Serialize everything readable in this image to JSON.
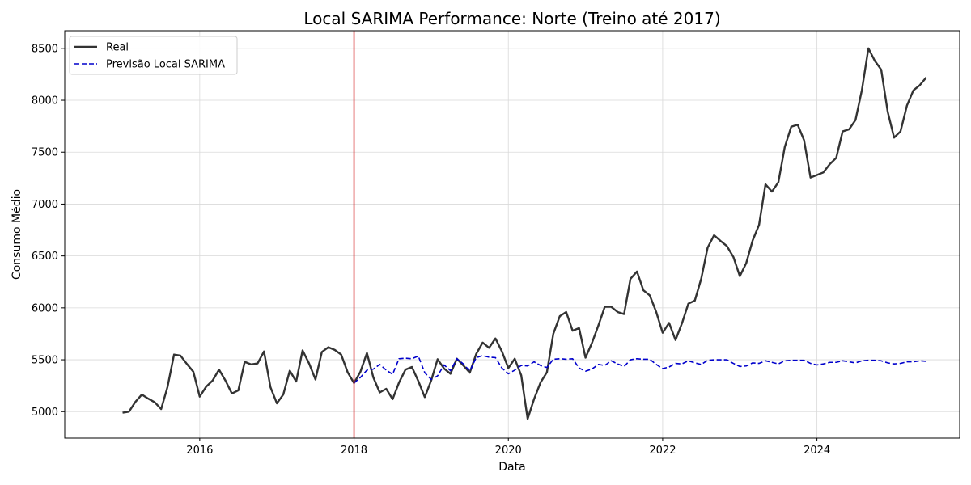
{
  "chart_data": {
    "type": "line",
    "title": "Local SARIMA Performance: Norte (Treino até 2017)",
    "xlabel": "Data",
    "ylabel": "Consumo Médio",
    "xlim": [
      2014.25,
      2025.85
    ],
    "ylim": [
      4745,
      8670
    ],
    "x_ticks": [
      2016,
      2018,
      2020,
      2022,
      2024
    ],
    "x_tick_labels": [
      "2016",
      "2018",
      "2020",
      "2022",
      "2024"
    ],
    "y_ticks": [
      5000,
      5500,
      6000,
      6500,
      7000,
      7500,
      8000,
      8500
    ],
    "y_tick_labels": [
      "5000",
      "5500",
      "6000",
      "6500",
      "7000",
      "7500",
      "8000",
      "8500"
    ],
    "grid": true,
    "legend_position": "top-left",
    "vline": {
      "x": 2018.0,
      "color": "#d62728"
    },
    "series": [
      {
        "name": "Real",
        "color": "#333333",
        "style": "solid",
        "x": [
          2015.0,
          2015.083,
          2015.167,
          2015.25,
          2015.333,
          2015.417,
          2015.5,
          2015.583,
          2015.667,
          2015.75,
          2015.833,
          2015.917,
          2016.0,
          2016.083,
          2016.167,
          2016.25,
          2016.333,
          2016.417,
          2016.5,
          2016.583,
          2016.667,
          2016.75,
          2016.833,
          2016.917,
          2017.0,
          2017.083,
          2017.167,
          2017.25,
          2017.333,
          2017.417,
          2017.5,
          2017.583,
          2017.667,
          2017.75,
          2017.833,
          2017.917,
          2018.0,
          2018.083,
          2018.167,
          2018.25,
          2018.333,
          2018.417,
          2018.5,
          2018.583,
          2018.667,
          2018.75,
          2018.833,
          2018.917,
          2019.0,
          2019.083,
          2019.167,
          2019.25,
          2019.333,
          2019.417,
          2019.5,
          2019.583,
          2019.667,
          2019.75,
          2019.833,
          2019.917,
          2020.0,
          2020.083,
          2020.167,
          2020.25,
          2020.333,
          2020.417,
          2020.5,
          2020.583,
          2020.667,
          2020.75,
          2020.833,
          2020.917,
          2021.0,
          2021.083,
          2021.167,
          2021.25,
          2021.333,
          2021.417,
          2021.5,
          2021.583,
          2021.667,
          2021.75,
          2021.833,
          2021.917,
          2022.0,
          2022.083,
          2022.167,
          2022.25,
          2022.333,
          2022.417,
          2022.5,
          2022.583,
          2022.667,
          2022.75,
          2022.833,
          2022.917,
          2023.0,
          2023.083,
          2023.167,
          2023.25,
          2023.333,
          2023.417,
          2023.5,
          2023.583,
          2023.667,
          2023.75,
          2023.833,
          2023.917,
          2024.0,
          2024.083,
          2024.167,
          2024.25,
          2024.333,
          2024.417,
          2024.5,
          2024.583,
          2024.667,
          2024.75,
          2024.833,
          2024.917,
          2025.0,
          2025.083,
          2025.167,
          2025.25,
          2025.333,
          2025.417
        ],
        "values": [
          4990,
          5000,
          5095,
          5165,
          5125,
          5090,
          5025,
          5240,
          5550,
          5540,
          5460,
          5385,
          5145,
          5240,
          5300,
          5405,
          5300,
          5175,
          5205,
          5480,
          5455,
          5465,
          5580,
          5235,
          5080,
          5165,
          5395,
          5290,
          5590,
          5465,
          5310,
          5575,
          5620,
          5595,
          5550,
          5380,
          5275,
          5385,
          5565,
          5330,
          5185,
          5220,
          5120,
          5280,
          5405,
          5430,
          5295,
          5140,
          5300,
          5505,
          5415,
          5365,
          5510,
          5445,
          5375,
          5555,
          5665,
          5615,
          5705,
          5580,
          5420,
          5510,
          5350,
          4930,
          5120,
          5280,
          5380,
          5750,
          5920,
          5960,
          5780,
          5805,
          5520,
          5660,
          5830,
          6010,
          6010,
          5960,
          5940,
          6280,
          6350,
          6170,
          6120,
          5960,
          5760,
          5855,
          5690,
          5850,
          6040,
          6070,
          6280,
          6580,
          6700,
          6645,
          6595,
          6490,
          6305,
          6430,
          6650,
          6800,
          7190,
          7120,
          7210,
          7550,
          7745,
          7765,
          7615,
          7255,
          7280,
          7305,
          7385,
          7445,
          7700,
          7720,
          7810,
          8100,
          8500,
          8380,
          8295,
          7890,
          7640,
          7700,
          7950,
          8095,
          8145,
          8220
        ]
      },
      {
        "name": "Previsão Local SARIMA",
        "color": "#0000cc",
        "style": "dashed",
        "x": [
          2018.0,
          2018.083,
          2018.167,
          2018.25,
          2018.333,
          2018.417,
          2018.5,
          2018.583,
          2018.667,
          2018.75,
          2018.833,
          2018.917,
          2019.0,
          2019.083,
          2019.167,
          2019.25,
          2019.333,
          2019.417,
          2019.5,
          2019.583,
          2019.667,
          2019.75,
          2019.833,
          2019.917,
          2020.0,
          2020.083,
          2020.167,
          2020.25,
          2020.333,
          2020.417,
          2020.5,
          2020.583,
          2020.667,
          2020.75,
          2020.833,
          2020.917,
          2021.0,
          2021.083,
          2021.167,
          2021.25,
          2021.333,
          2021.417,
          2021.5,
          2021.583,
          2021.667,
          2021.75,
          2021.833,
          2021.917,
          2022.0,
          2022.083,
          2022.167,
          2022.25,
          2022.333,
          2022.417,
          2022.5,
          2022.583,
          2022.667,
          2022.75,
          2022.833,
          2022.917,
          2023.0,
          2023.083,
          2023.167,
          2023.25,
          2023.333,
          2023.417,
          2023.5,
          2023.583,
          2023.667,
          2023.75,
          2023.833,
          2023.917,
          2024.0,
          2024.083,
          2024.167,
          2024.25,
          2024.333,
          2024.417,
          2024.5,
          2024.583,
          2024.667,
          2024.75,
          2024.833,
          2024.917,
          2025.0,
          2025.083,
          2025.167,
          2025.25,
          2025.333,
          2025.417
        ],
        "values": [
          5275,
          5330,
          5400,
          5410,
          5455,
          5400,
          5360,
          5510,
          5515,
          5510,
          5535,
          5375,
          5310,
          5345,
          5450,
          5395,
          5510,
          5460,
          5390,
          5520,
          5540,
          5525,
          5520,
          5420,
          5365,
          5400,
          5445,
          5440,
          5480,
          5445,
          5425,
          5505,
          5510,
          5505,
          5510,
          5420,
          5390,
          5410,
          5455,
          5445,
          5490,
          5460,
          5435,
          5500,
          5510,
          5505,
          5505,
          5455,
          5415,
          5430,
          5465,
          5460,
          5490,
          5470,
          5455,
          5495,
          5500,
          5500,
          5500,
          5465,
          5435,
          5440,
          5470,
          5465,
          5490,
          5475,
          5460,
          5490,
          5495,
          5495,
          5495,
          5465,
          5450,
          5460,
          5475,
          5475,
          5490,
          5480,
          5470,
          5490,
          5495,
          5495,
          5490,
          5470,
          5460,
          5465,
          5480,
          5480,
          5490,
          5485
        ]
      }
    ]
  }
}
